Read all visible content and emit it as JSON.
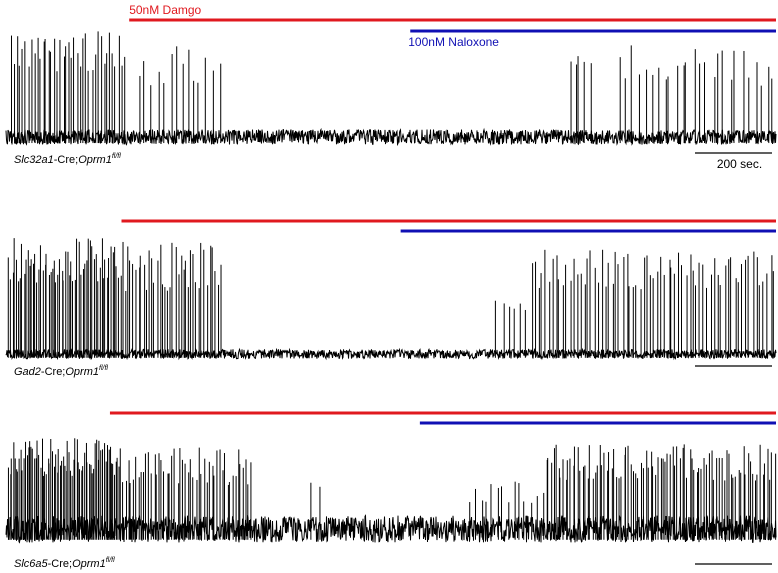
{
  "chart_data": {
    "type": "line",
    "description_units": "firing traces; x = time in seconds from trace start",
    "drug_colors": {
      "Damgo": "#e0191f",
      "Naloxone": "#1010b4",
      "trace": "#000000"
    },
    "drug_labels": {
      "damgo": "50nM Damgo",
      "naloxone": "100nM Naloxone"
    },
    "scale_bar": {
      "seconds": 200,
      "label": "200 sec."
    },
    "panels": [
      {
        "label_parts": [
          {
            "text": "Slc32a1",
            "italic": true
          },
          {
            "text": "-Cre;",
            "italic": false
          },
          {
            "text": "Oprm1",
            "italic": true
          },
          {
            "text": "fl/fl",
            "italic": true,
            "superscript": true
          }
        ],
        "duration_s": 2000,
        "damgo_start_s": 320,
        "naloxone_start_s": 1050,
        "noise_level": 0.07,
        "spike_bursts": [
          {
            "start_s": 10,
            "end_s": 310,
            "count": 40,
            "amp_min": 0.6,
            "amp_max": 1.0
          },
          {
            "start_s": 340,
            "end_s": 560,
            "count": 14,
            "amp_min": 0.45,
            "amp_max": 0.85
          },
          {
            "start_s": 1455,
            "end_s": 1530,
            "count": 5,
            "amp_min": 0.55,
            "amp_max": 0.75
          },
          {
            "start_s": 1590,
            "end_s": 2000,
            "count": 26,
            "amp_min": 0.45,
            "amp_max": 0.85
          }
        ],
        "show_scale_label": true
      },
      {
        "label_parts": [
          {
            "text": "Gad2",
            "italic": true
          },
          {
            "text": "-Cre;",
            "italic": false
          },
          {
            "text": "Oprm1",
            "italic": true
          },
          {
            "text": "fl/fl",
            "italic": true,
            "superscript": true
          }
        ],
        "duration_s": 2000,
        "damgo_start_s": 300,
        "naloxone_start_s": 1025,
        "noise_level": 0.04,
        "spike_bursts": [
          {
            "start_s": 5,
            "end_s": 300,
            "count": 60,
            "amp_min": 0.6,
            "amp_max": 1.0
          },
          {
            "start_s": 300,
            "end_s": 560,
            "count": 38,
            "amp_min": 0.5,
            "amp_max": 0.95
          },
          {
            "start_s": 1270,
            "end_s": 1360,
            "count": 6,
            "amp_min": 0.35,
            "amp_max": 0.6
          },
          {
            "start_s": 1360,
            "end_s": 2000,
            "count": 70,
            "amp_min": 0.55,
            "amp_max": 0.9
          }
        ],
        "show_scale_label": false
      },
      {
        "label_parts": [
          {
            "text": "Slc6a5",
            "italic": true
          },
          {
            "text": "-Cre;",
            "italic": false
          },
          {
            "text": "Oprm1",
            "italic": true
          },
          {
            "text": "fl/fl",
            "italic": true,
            "superscript": true
          }
        ],
        "duration_s": 2000,
        "damgo_start_s": 270,
        "naloxone_start_s": 1075,
        "noise_level": 0.14,
        "spike_bursts": [
          {
            "start_s": 5,
            "end_s": 300,
            "count": 75,
            "amp_min": 0.55,
            "amp_max": 0.95
          },
          {
            "start_s": 300,
            "end_s": 640,
            "count": 50,
            "amp_min": 0.45,
            "amp_max": 0.85
          },
          {
            "start_s": 780,
            "end_s": 830,
            "count": 2,
            "amp_min": 0.4,
            "amp_max": 0.5
          },
          {
            "start_s": 1200,
            "end_s": 1400,
            "count": 14,
            "amp_min": 0.25,
            "amp_max": 0.5
          },
          {
            "start_s": 1400,
            "end_s": 2000,
            "count": 95,
            "amp_min": 0.5,
            "amp_max": 0.9
          }
        ],
        "show_scale_label": false
      }
    ]
  }
}
